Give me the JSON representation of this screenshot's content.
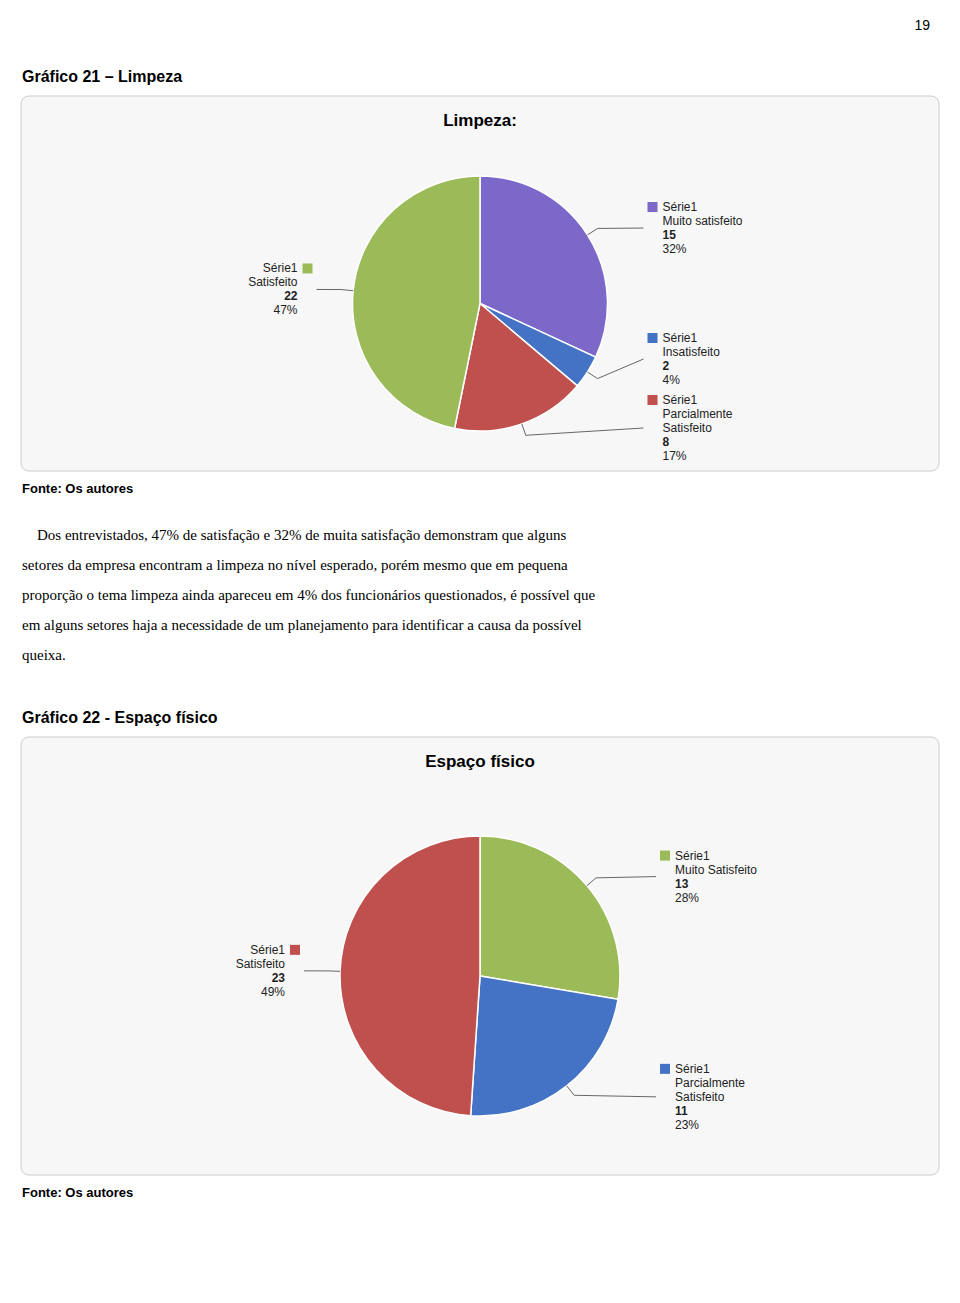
{
  "page_number": "19",
  "body_text": [
    "    Dos entrevistados, 47% de satisfação e 32% de muita satisfação demonstram que alguns",
    "setores da empresa encontram a limpeza no nível esperado, porém mesmo que em pequena",
    "proporção o tema limpeza ainda apareceu em 4% dos funcionários questionados, é possível que",
    "em alguns setores haja a necessidade de um planejamento para identificar a causa da possível",
    "queixa."
  ],
  "chart_data": [
    {
      "type": "pie",
      "title": "Gráfico 21 – Limpeza",
      "subtitle": "Limpeza:",
      "categories": [
        "Muito satisfeito",
        "Insatisfeito",
        "Parcialmente\nSatisfeito",
        "Satisfeito"
      ],
      "series": [
        {
          "name": "Série1",
          "values": [
            15,
            2,
            8,
            22
          ],
          "percentages": [
            {
              "value": 32,
              "label": "32%"
            },
            {
              "value": 4,
              "label": "4%"
            },
            {
              "value": 17,
              "label": "17%"
            },
            {
              "value": 47,
              "label": "47%"
            }
          ]
        }
      ],
      "colors": [
        "#7B68C8",
        "#4472C4",
        "#C0504D",
        "#9BBB59"
      ],
      "data_labels": true,
      "annotations": [
        "Fonte: Os autores"
      ]
    },
    {
      "type": "pie",
      "title": "Gráfico 22 - Espaço físico",
      "subtitle": "Espaço físico",
      "categories": [
        "Muito Satisfeito",
        "Parcialmente\nSatisfeito",
        "Satisfeito"
      ],
      "series": [
        {
          "name": "Série1",
          "values": [
            13,
            11,
            23
          ],
          "percentages": [
            {
              "value": 28,
              "label": "28%"
            },
            {
              "value": 23,
              "label": "23%"
            },
            {
              "value": 49,
              "label": "49%"
            }
          ]
        }
      ],
      "colors": [
        "#9BBB59",
        "#4472C4",
        "#C0504D"
      ],
      "data_labels": true,
      "annotations": [
        "Fonte: Os autores"
      ]
    }
  ]
}
